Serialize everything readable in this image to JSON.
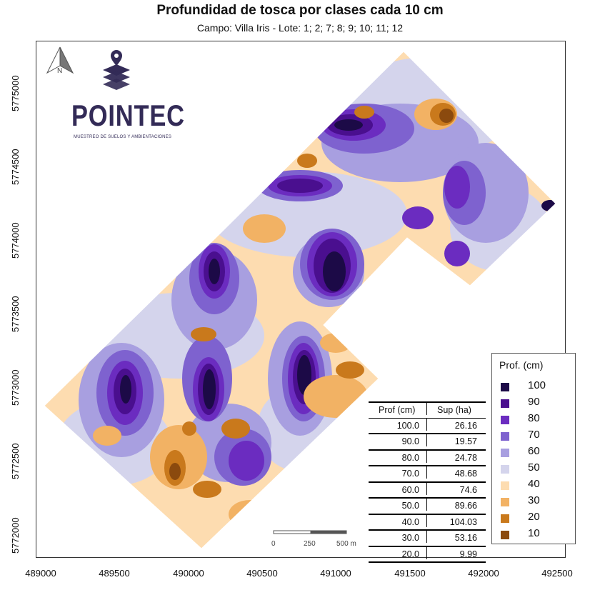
{
  "title": "Profundidad de tosca por clases cada 10 cm",
  "subtitle": "Campo: Villa Iris  - Lote: 1; 2; 7; 8; 9; 10; 11; 12",
  "axes": {
    "x_ticks": [
      "489000",
      "489500",
      "490000",
      "490500",
      "491000",
      "491500",
      "492000",
      "492500"
    ],
    "y_ticks": [
      "5772000",
      "5772500",
      "5773000",
      "5773500",
      "5774000",
      "5774500",
      "5775000"
    ]
  },
  "logo": {
    "name": "POINTEC",
    "tagline": "MUESTREO DE SUELOS Y AMBIENTACIONES"
  },
  "north_arrow": {
    "label": "N"
  },
  "legend": {
    "title": "Prof. (cm)",
    "items": [
      {
        "label": "100",
        "color": "#1c0a47"
      },
      {
        "label": "90",
        "color": "#4a0f8f"
      },
      {
        "label": "80",
        "color": "#6b2cc0"
      },
      {
        "label": "70",
        "color": "#7e62cf"
      },
      {
        "label": "60",
        "color": "#a89fe0"
      },
      {
        "label": "50",
        "color": "#d4d4ec"
      },
      {
        "label": "40",
        "color": "#fddcb0"
      },
      {
        "label": "30",
        "color": "#f2b264"
      },
      {
        "label": "20",
        "color": "#c9791c"
      },
      {
        "label": "10",
        "color": "#8b4a0e"
      }
    ]
  },
  "table": {
    "headers": [
      "Prof (cm)",
      "Sup (ha)"
    ],
    "rows": [
      [
        "100.0",
        "26.16"
      ],
      [
        "90.0",
        "19.57"
      ],
      [
        "80.0",
        "24.78"
      ],
      [
        "70.0",
        "48.68"
      ],
      [
        "60.0",
        "74.6"
      ],
      [
        "50.0",
        "89.66"
      ],
      [
        "40.0",
        "104.03"
      ],
      [
        "30.0",
        "53.16"
      ],
      [
        "20.0",
        "9.99"
      ]
    ]
  },
  "scalebar": {
    "labels": [
      "0",
      "250",
      "500 m"
    ]
  }
}
